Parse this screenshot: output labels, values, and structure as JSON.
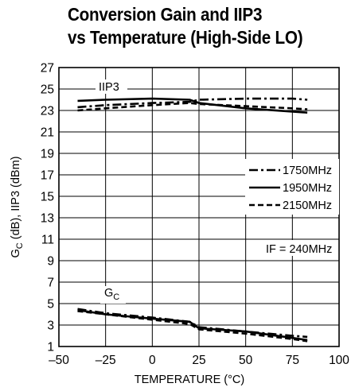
{
  "chart_data": {
    "type": "line",
    "title_line1": "Conversion Gain and IIP3",
    "title_line2": "vs Temperature (High-Side LO)",
    "xlabel": "TEMPERATURE (°C)",
    "ylabel": "GC (dB), IIP3 (dBm)",
    "ylabel_main": "G",
    "ylabel_sub": "C",
    "ylabel_rest": " (dB), IIP3 (dBm)",
    "xlim": [
      -50,
      100
    ],
    "ylim": [
      1,
      27
    ],
    "xticks": [
      "–50",
      "–25",
      "0",
      "25",
      "50",
      "75",
      "100"
    ],
    "yticks": [
      "1",
      "3",
      "5",
      "7",
      "9",
      "11",
      "13",
      "15",
      "17",
      "19",
      "21",
      "23",
      "25",
      "27"
    ],
    "grid": true,
    "legend_position": "right-middle",
    "annotation": "IF = 240MHz",
    "group_labels": {
      "iip3": "IIP3",
      "gc_main": "G",
      "gc_sub": "C"
    },
    "series": [
      {
        "name": "1750MHz",
        "style": "dashdot",
        "iip3": [
          [
            -40,
            23.3
          ],
          [
            -25,
            23.5
          ],
          [
            0,
            23.7
          ],
          [
            20,
            23.8
          ],
          [
            25,
            24.0
          ],
          [
            50,
            24.1
          ],
          [
            75,
            24.1
          ],
          [
            83,
            24.0
          ]
        ],
        "gc": [
          [
            -40,
            4.5
          ],
          [
            -25,
            4.1
          ],
          [
            0,
            3.7
          ],
          [
            20,
            3.3
          ],
          [
            25,
            2.8
          ],
          [
            50,
            2.4
          ],
          [
            75,
            2.0
          ],
          [
            83,
            1.9
          ]
        ]
      },
      {
        "name": "1950MHz",
        "style": "solid",
        "iip3": [
          [
            -40,
            23.9
          ],
          [
            -25,
            24.0
          ],
          [
            0,
            24.1
          ],
          [
            20,
            24.0
          ],
          [
            25,
            23.7
          ],
          [
            50,
            23.2
          ],
          [
            75,
            22.9
          ],
          [
            83,
            22.8
          ]
        ],
        "gc": [
          [
            -40,
            4.4
          ],
          [
            -25,
            4.0
          ],
          [
            0,
            3.6
          ],
          [
            20,
            3.3
          ],
          [
            25,
            2.7
          ],
          [
            50,
            2.4
          ],
          [
            75,
            1.8
          ],
          [
            83,
            1.6
          ]
        ]
      },
      {
        "name": "2150MHz",
        "style": "dashed",
        "iip3": [
          [
            -40,
            23.0
          ],
          [
            -25,
            23.2
          ],
          [
            0,
            23.5
          ],
          [
            20,
            23.7
          ],
          [
            25,
            23.6
          ],
          [
            50,
            23.4
          ],
          [
            75,
            23.2
          ],
          [
            83,
            23.1
          ]
        ],
        "gc": [
          [
            -40,
            4.3
          ],
          [
            -25,
            4.0
          ],
          [
            0,
            3.5
          ],
          [
            20,
            3.1
          ],
          [
            25,
            2.6
          ],
          [
            50,
            2.2
          ],
          [
            75,
            1.7
          ],
          [
            83,
            1.5
          ]
        ]
      }
    ]
  }
}
